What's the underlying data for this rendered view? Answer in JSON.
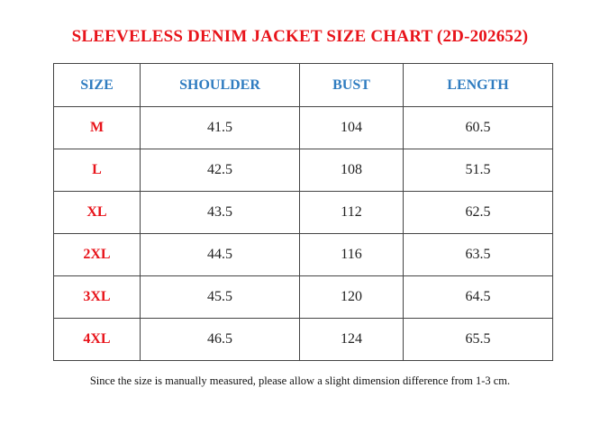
{
  "title": "SLEEVELESS DENIM JACKET SIZE CHART (2D-202652)",
  "table": {
    "header": [
      "SIZE",
      "SHOULDER",
      "BUST",
      "LENGTH"
    ],
    "rows": [
      [
        "M",
        41.5,
        104,
        60.5
      ],
      [
        "L",
        42.5,
        108,
        51.5
      ],
      [
        "XL",
        43.5,
        112,
        62.5
      ],
      [
        "2XL",
        44.5,
        116,
        63.5
      ],
      [
        "3XL",
        45.5,
        120,
        64.5
      ],
      [
        "4XL",
        46.5,
        124,
        65.5
      ]
    ]
  },
  "note": "Since the size is manually measured, please allow a slight dimension difference from 1-3 cm."
}
